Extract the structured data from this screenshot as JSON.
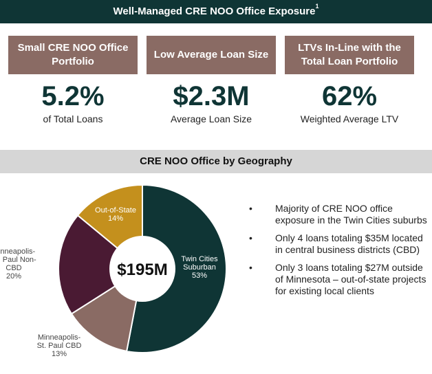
{
  "header": {
    "title": "Well-Managed CRE NOO Office Exposure",
    "footnote": "1"
  },
  "stats": [
    {
      "label": "Small CRE NOO Office Portfolio",
      "value": "5.2%",
      "caption": "of Total Loans"
    },
    {
      "label": "Low Average Loan Size",
      "value": "$2.3M",
      "caption": "Average Loan Size"
    },
    {
      "label": "LTVs In-Line with the Total Loan Portfolio",
      "value": "62%",
      "caption": "Weighted Average LTV"
    }
  ],
  "geo_section": {
    "title": "CRE NOO Office by Geography"
  },
  "chart_data": {
    "type": "pie",
    "title": "CRE NOO Office by Geography",
    "center_label": "$195M",
    "slices": [
      {
        "name": "Twin Cities Suburban",
        "value": 53,
        "label_lines": [
          "Twin Cities",
          "Suburban",
          "53%"
        ],
        "color": "#0f3535"
      },
      {
        "name": "Minneapolis-St. Paul CBD",
        "value": 13,
        "label_lines": [
          "Minneapolis-",
          "St. Paul CBD",
          "13%"
        ],
        "color": "#8a6b64"
      },
      {
        "name": "Minneapolis-St. Paul Non-CBD",
        "value": 20,
        "label_lines": [
          "Minneapolis-",
          "St. Paul Non-",
          "CBD",
          "20%"
        ],
        "color": "#4a1a33"
      },
      {
        "name": "Out-of-State",
        "value": 14,
        "label_lines": [
          "Out-of-State",
          "14%"
        ],
        "color": "#c4901d"
      }
    ]
  },
  "bullets": {
    "marker": "•",
    "items": [
      "Majority of CRE NOO office exposure in the Twin Cities suburbs",
      "Only 4 loans totaling $35M located in central business districts (CBD)",
      "Only 3 loans totaling $27M outside of Minnesota – out-of-state projects for existing local clients"
    ]
  }
}
